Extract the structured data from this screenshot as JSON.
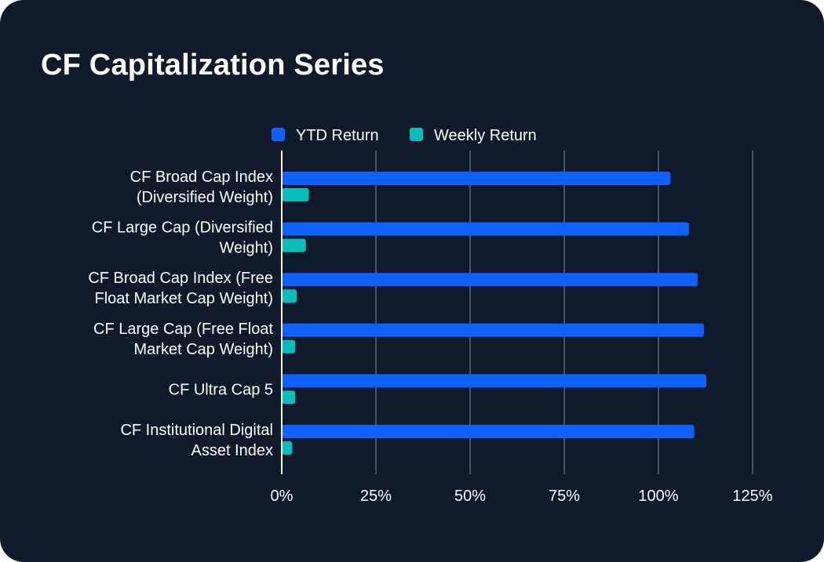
{
  "header": {
    "title": "CF Capitalization Series"
  },
  "chart_data": {
    "type": "bar",
    "orientation": "horizontal",
    "title": "CF Capitalization Series",
    "categories": [
      [
        "CF Broad Cap Index",
        "(Diversified Weight)"
      ],
      [
        "CF Large Cap (Diversified",
        "Weight)"
      ],
      [
        "CF Broad Cap Index (Free",
        "Float Market Cap Weight)"
      ],
      [
        "CF Large Cap (Free Float",
        "Market Cap Weight)"
      ],
      [
        "CF Ultra Cap 5"
      ],
      [
        "CF Institutional Digital",
        "Asset Index"
      ]
    ],
    "series": [
      {
        "name": "YTD Return",
        "color": "#0f62fe",
        "values": [
          103.2,
          108.1,
          110.4,
          112.1,
          112.7,
          109.5
        ]
      },
      {
        "name": "Weekly Return",
        "color": "#08bdba",
        "values": [
          7.2,
          6.4,
          4.0,
          3.6,
          3.6,
          2.8
        ]
      }
    ],
    "xlim": [
      0,
      125
    ],
    "ticks": [
      0,
      25,
      50,
      75,
      100,
      125
    ],
    "tick_labels": [
      "0%",
      "25%",
      "50%",
      "75%",
      "100%",
      "125%"
    ],
    "xlabel": "",
    "ylabel": "",
    "legend": "top-center",
    "grid": true,
    "colors": {
      "background": "#0f1a2b",
      "grid": "#4a525e",
      "axis": "#ffffff",
      "text": "#ffffff"
    }
  }
}
